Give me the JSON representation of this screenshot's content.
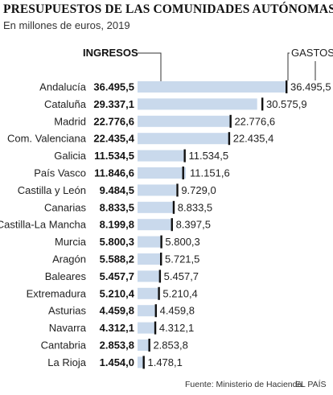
{
  "title": "PRESUPUESTOS DE LAS COMUNIDADES AUTÓNOMAS",
  "subtitle": "En millones de euros, 2019",
  "footer": {
    "source": "Fuente: Ministerio de Hacienda.",
    "brand": "EL PAÍS"
  },
  "colors": {
    "bar": "#c9d9ec",
    "marker": "#111111",
    "text": "#222222"
  },
  "chart_data": {
    "type": "bar",
    "orientation": "horizontal",
    "title": "PRESUPUESTOS DE LAS COMUNIDADES AUTÓNOMAS",
    "subtitle": "En millones de euros, 2019",
    "header_left": "INGRESOS",
    "header_right": "GASTOS",
    "categories": [
      "Andalucía",
      "Cataluña",
      "Madrid",
      "Com. Valenciana",
      "Galicia",
      "País Vasco",
      "Castilla y León",
      "Canarias",
      "Castilla-La Mancha",
      "Murcia",
      "Aragón",
      "Baleares",
      "Extremadura",
      "Asturias",
      "Navarra",
      "Cantabria",
      "La Rioja"
    ],
    "series": [
      {
        "name": "INGRESOS",
        "values": [
          36495.5,
          29337.1,
          22776.6,
          22435.4,
          11534.5,
          11846.6,
          9484.5,
          8833.5,
          8199.8,
          5800.3,
          5588.2,
          5457.7,
          5210.4,
          4459.8,
          4312.1,
          2853.8,
          1454.0
        ]
      },
      {
        "name": "GASTOS",
        "values": [
          36495.5,
          30575.9,
          22776.6,
          22435.4,
          11534.5,
          11151.6,
          9729.0,
          8833.5,
          8397.5,
          5800.3,
          5721.5,
          5457.7,
          5210.4,
          4459.8,
          4312.1,
          2853.8,
          1478.1
        ]
      }
    ],
    "ingresos_labels": [
      "36.495,5",
      "29.337,1",
      "22.776,6",
      "22.435,4",
      "11.534,5",
      "11.846,6",
      "9.484,5",
      "8.833,5",
      "8.199,8",
      "5.800,3",
      "5.588,2",
      "5.457,7",
      "5.210,4",
      "4.459,8",
      "4.312,1",
      "2.853,8",
      "1.454,0"
    ],
    "gastos_labels": [
      "36.495,5",
      "30.575,9",
      "22.776,6",
      "22.435,4",
      "11.534,5",
      "11.151,6",
      "9.729,0",
      "8.833,5",
      "8.397,5",
      "5.800,3",
      "5.721,5",
      "5.457,7",
      "5.210,4",
      "4.459,8",
      "4.312,1",
      "2.853,8",
      "1.478,1"
    ],
    "xlim": [
      0,
      36495.5
    ],
    "grid": false,
    "legend": "top"
  }
}
